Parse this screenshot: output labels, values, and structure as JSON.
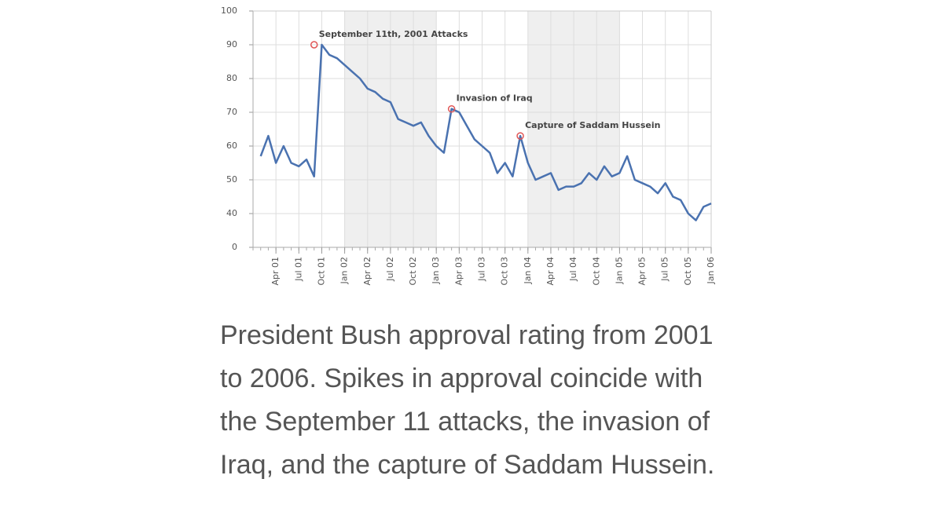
{
  "chart_data": {
    "type": "line",
    "x": [
      "2001-02",
      "2001-03",
      "2001-04",
      "2001-05",
      "2001-06",
      "2001-07",
      "2001-08",
      "2001-09",
      "2001-10",
      "2001-11",
      "2001-12",
      "2002-01",
      "2002-02",
      "2002-03",
      "2002-04",
      "2002-05",
      "2002-06",
      "2002-07",
      "2002-08",
      "2002-09",
      "2002-10",
      "2002-11",
      "2002-12",
      "2003-01",
      "2003-02",
      "2003-03",
      "2003-04",
      "2003-05",
      "2003-06",
      "2003-07",
      "2003-08",
      "2003-09",
      "2003-10",
      "2003-11",
      "2003-12",
      "2004-01",
      "2004-02",
      "2004-03",
      "2004-04",
      "2004-05",
      "2004-06",
      "2004-07",
      "2004-08",
      "2004-09",
      "2004-10",
      "2004-11",
      "2004-12",
      "2005-01",
      "2005-02",
      "2005-03",
      "2005-04",
      "2005-05",
      "2005-06",
      "2005-07",
      "2005-08",
      "2005-09",
      "2005-10",
      "2005-11",
      "2005-12",
      "2006-01"
    ],
    "series": [
      {
        "color": "#4a72b0",
        "values": [
          57,
          63,
          55,
          60,
          55,
          54,
          56,
          51,
          90,
          87,
          86,
          84,
          82,
          80,
          77,
          76,
          74,
          73,
          68,
          67,
          66,
          67,
          63,
          60,
          58,
          71,
          70,
          66,
          62,
          60,
          58,
          52,
          55,
          51,
          63,
          55,
          50,
          51,
          52,
          47,
          48,
          48,
          49,
          52,
          50,
          54,
          51,
          52,
          57,
          50,
          49,
          48,
          46,
          49,
          45,
          44,
          40,
          38,
          42,
          43
        ]
      }
    ],
    "xlim": [
      "2001-01",
      "2006-01"
    ],
    "xticks": [
      {
        "value": "2001-04",
        "label": "Apr 01"
      },
      {
        "value": "2001-07",
        "label": "Jul 01"
      },
      {
        "value": "2001-10",
        "label": "Oct 01"
      },
      {
        "value": "2002-01",
        "label": "Jan 02"
      },
      {
        "value": "2002-04",
        "label": "Apr 02"
      },
      {
        "value": "2002-07",
        "label": "Jul 02"
      },
      {
        "value": "2002-10",
        "label": "Oct 02"
      },
      {
        "value": "2003-01",
        "label": "Jan 03"
      },
      {
        "value": "2003-04",
        "label": "Apr 03"
      },
      {
        "value": "2003-07",
        "label": "Jul 03"
      },
      {
        "value": "2003-10",
        "label": "Oct 03"
      },
      {
        "value": "2004-01",
        "label": "Jan 04"
      },
      {
        "value": "2004-04",
        "label": "Apr 04"
      },
      {
        "value": "2004-07",
        "label": "Jul 04"
      },
      {
        "value": "2004-10",
        "label": "Oct 04"
      },
      {
        "value": "2005-01",
        "label": "Jan 05"
      },
      {
        "value": "2005-04",
        "label": "Apr 05"
      },
      {
        "value": "2005-07",
        "label": "Jul 05"
      },
      {
        "value": "2005-10",
        "label": "Oct 05"
      },
      {
        "value": "2006-01",
        "label": "Jan 06"
      }
    ],
    "ylim": [
      0,
      100
    ],
    "y_break": [
      0,
      40
    ],
    "yticks": [
      0,
      40,
      50,
      60,
      70,
      80,
      90,
      100
    ],
    "grid": true,
    "shaded_ranges": [
      [
        "2002-01",
        "2003-01"
      ],
      [
        "2004-01",
        "2005-01"
      ]
    ],
    "annotations": [
      {
        "text": "September 11th, 2001 Attacks",
        "x": "2001-09",
        "y": 90
      },
      {
        "text": "Invasion of Iraq",
        "x": "2003-03",
        "y": 71
      },
      {
        "text": "Capture of Saddam Hussein",
        "x": "2003-12",
        "y": 63
      }
    ]
  },
  "caption": "President Bush approval rating from 2001 to 2006. Spikes in approval coincide with the September 11 attacks, the invasion of Iraq, and the capture of Saddam Hussein."
}
